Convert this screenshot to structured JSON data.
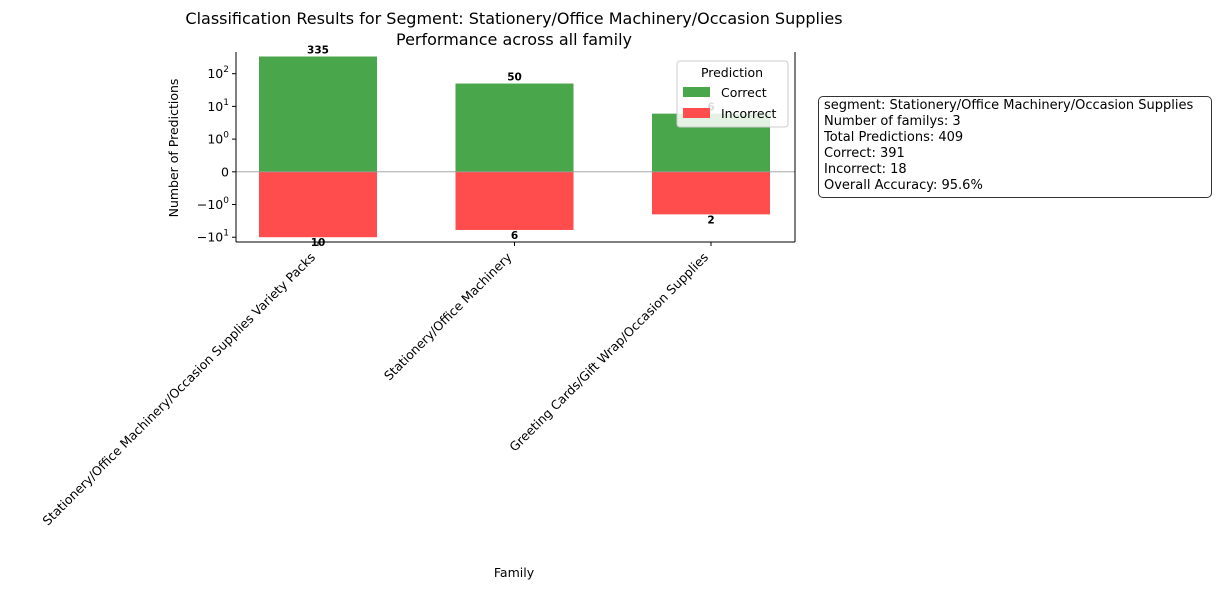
{
  "chart_data": {
    "type": "bar",
    "title": "Classification Results for Segment: Stationery/Office Machinery/Occasion Supplies",
    "subtitle": "Performance across all family",
    "xlabel": "Family",
    "ylabel": "Number of Predictions",
    "yscale": "symlog",
    "ylim": [
      -14,
      460
    ],
    "yticks": [
      {
        "value": 100,
        "base": "10",
        "exp": "2"
      },
      {
        "value": 10,
        "base": "10",
        "exp": "1"
      },
      {
        "value": 1,
        "base": "10",
        "exp": "0"
      },
      {
        "value": 0,
        "label": "0"
      },
      {
        "value": -1,
        "base": "−10",
        "exp": "0"
      },
      {
        "value": -10,
        "base": "−10",
        "exp": "1"
      }
    ],
    "categories": [
      "Stationery/Office Machinery/Occasion Supplies Variety Packs",
      "Stationery/Office Machinery",
      "Greeting Cards/Gift Wrap/Occasion Supplies"
    ],
    "series": [
      {
        "name": "Correct",
        "color": "#4aa64a",
        "values": [
          335,
          50,
          6
        ],
        "labels": [
          "335",
          "50",
          "6"
        ]
      },
      {
        "name": "Incorrect",
        "color": "#ff4c4c",
        "values": [
          -10,
          -6,
          -2
        ],
        "labels": [
          "10",
          "6",
          "2"
        ]
      }
    ],
    "legend": {
      "title": "Prediction",
      "position": "top-right"
    },
    "grid": false
  },
  "stats": [
    "segment: Stationery/Office Machinery/Occasion Supplies",
    "Number of familys: 3",
    "Total Predictions: 409",
    "Correct: 391",
    "Incorrect: 18",
    "Overall Accuracy: 95.6%"
  ]
}
